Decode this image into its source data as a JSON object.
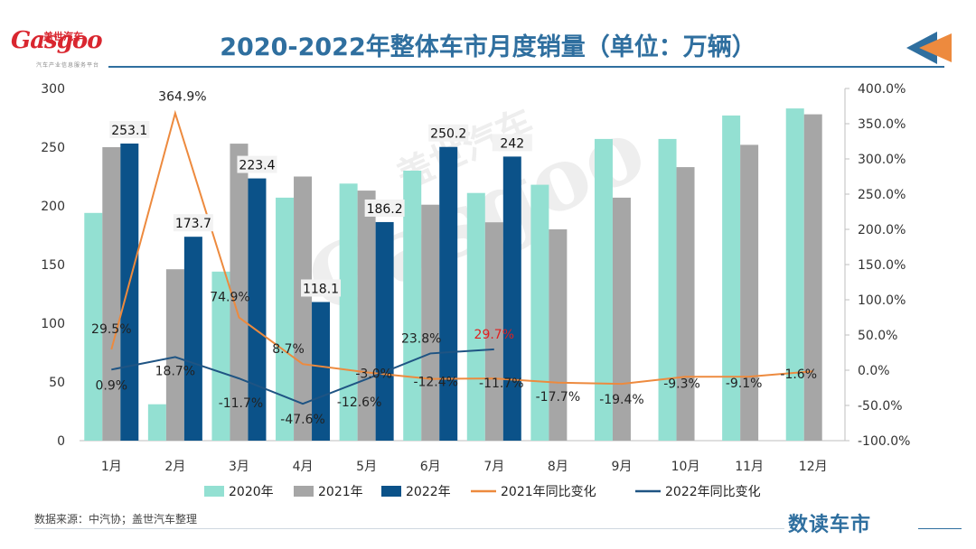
{
  "header": {
    "logo_text": "Gasgoo",
    "logo_cn": "盖世汽车",
    "logo_sub": "汽车产业信息服务平台",
    "title": "2020-2022年整体车市月度销量（单位：万辆）"
  },
  "watermark": {
    "cn": "盖世汽车",
    "en": "Gasgoo"
  },
  "footer": {
    "source": "数据来源：中汽协；盖世汽车整理",
    "brand": "数读车市"
  },
  "colors": {
    "y2020": "#93e0d2",
    "y2021": "#a6a6a6",
    "y2022": "#0b5289",
    "yoy2021": "#ed8a3e",
    "yoy2022": "#1f5483",
    "title": "#2f6f9f",
    "highlight": "#e02020"
  },
  "chart_data": {
    "type": "bar+line",
    "title": "2020-2022年整体车市月度销量（单位：万辆）",
    "categories": [
      "1月",
      "2月",
      "3月",
      "4月",
      "5月",
      "6月",
      "7月",
      "8月",
      "9月",
      "10月",
      "11月",
      "12月"
    ],
    "y_left": {
      "min": 0,
      "max": 300,
      "ticks": [
        "0",
        "50",
        "100",
        "150",
        "200",
        "250",
        "300"
      ]
    },
    "y_right": {
      "min": -100,
      "max": 400,
      "ticks": [
        "-100.0%",
        "-50.0%",
        "0.0%",
        "50.0%",
        "100.0%",
        "150.0%",
        "200.0%",
        "250.0%",
        "300.0%",
        "350.0%",
        "400.0%"
      ]
    },
    "series": [
      {
        "name": "2020年",
        "type": "bar",
        "axis": "left",
        "values": [
          194,
          31,
          144,
          207,
          219,
          230,
          211,
          218,
          257,
          257,
          277,
          283
        ]
      },
      {
        "name": "2021年",
        "type": "bar",
        "axis": "left",
        "values": [
          250,
          146,
          253,
          225,
          213,
          201,
          186,
          180,
          207,
          233,
          252,
          278
        ]
      },
      {
        "name": "2022年",
        "type": "bar",
        "axis": "left",
        "values": [
          253.1,
          173.7,
          223.4,
          118.1,
          186.2,
          250.2,
          242,
          null,
          null,
          null,
          null,
          null
        ],
        "labels": [
          "253.1",
          "173.7",
          "223.4",
          "118.1",
          "186.2",
          "250.2",
          "242",
          "",
          "",
          "",
          "",
          ""
        ]
      },
      {
        "name": "2021年同比变化",
        "type": "line",
        "axis": "right",
        "values": [
          29.5,
          364.9,
          74.9,
          8.7,
          -3.0,
          -12.4,
          -11.7,
          -17.7,
          -19.4,
          -9.3,
          -9.1,
          -1.6
        ],
        "labels": [
          "29.5%",
          "364.9%",
          "74.9%",
          "8.7%",
          "-3.0%",
          "-12.4%",
          "-11.7%",
          "-17.7%",
          "-19.4%",
          "-9.3%",
          "-9.1%",
          "-1.6%"
        ]
      },
      {
        "name": "2022年同比变化",
        "type": "line",
        "axis": "right",
        "values": [
          0.9,
          18.7,
          -11.7,
          -47.6,
          -12.6,
          23.8,
          29.7,
          null,
          null,
          null,
          null,
          null
        ],
        "labels": [
          "0.9%",
          "18.7%",
          "-11.7%",
          "-47.6%",
          "-12.6%",
          "23.8%",
          "29.7%",
          "",
          "",
          "",
          "",
          ""
        ]
      }
    ],
    "legend": [
      "2020年",
      "2021年",
      "2022年",
      "2021年同比变化",
      "2022年同比变化"
    ],
    "legend_position": "bottom"
  }
}
